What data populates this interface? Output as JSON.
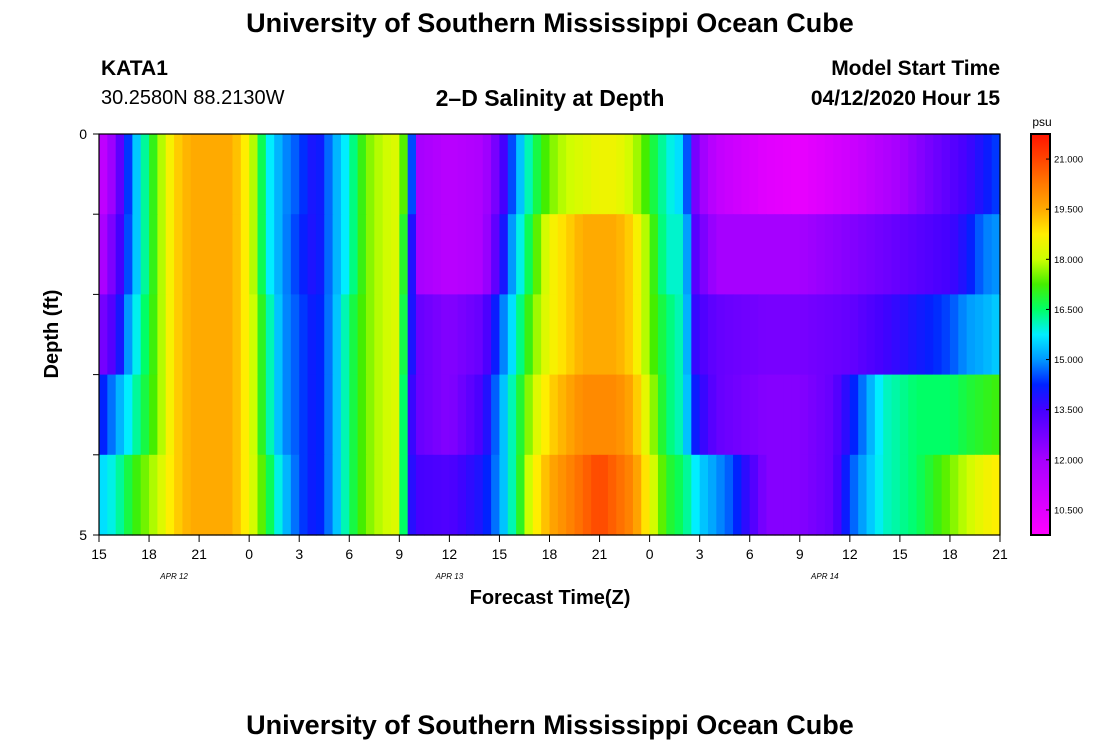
{
  "page": {
    "title_top": "University of Southern Mississippi Ocean Cube",
    "title_bottom": "University of Southern Mississippi Ocean Cube",
    "station_id": "KATA1",
    "station_coords": "30.2580N 88.2130W",
    "chart_title": "2–D Salinity at Depth",
    "model_label": "Model Start Time",
    "model_time": "04/12/2020 Hour 15"
  },
  "chart_data": {
    "type": "heatmap",
    "title": "2–D Salinity at Depth",
    "xlabel": "Forecast Time(Z)",
    "ylabel": "Depth (ft)",
    "x_start_hour": 15,
    "x_end_hour": 69,
    "x_ticks": [
      {
        "hour": 15,
        "label": "15"
      },
      {
        "hour": 18,
        "label": "18"
      },
      {
        "hour": 21,
        "label": "21"
      },
      {
        "hour": 24,
        "label": "0"
      },
      {
        "hour": 27,
        "label": "3"
      },
      {
        "hour": 30,
        "label": "6"
      },
      {
        "hour": 33,
        "label": "9"
      },
      {
        "hour": 36,
        "label": "12"
      },
      {
        "hour": 39,
        "label": "15"
      },
      {
        "hour": 42,
        "label": "18"
      },
      {
        "hour": 45,
        "label": "21"
      },
      {
        "hour": 48,
        "label": "0"
      },
      {
        "hour": 51,
        "label": "3"
      },
      {
        "hour": 54,
        "label": "6"
      },
      {
        "hour": 57,
        "label": "9"
      },
      {
        "hour": 60,
        "label": "12"
      },
      {
        "hour": 63,
        "label": "15"
      },
      {
        "hour": 66,
        "label": "18"
      },
      {
        "hour": 69,
        "label": "21"
      }
    ],
    "date_labels": [
      {
        "hour": 19.5,
        "label": "APR 12"
      },
      {
        "hour": 36.0,
        "label": "APR 13"
      },
      {
        "hour": 58.5,
        "label": "APR 14"
      }
    ],
    "y_range": [
      0,
      5
    ],
    "y_ticks": [
      0,
      1,
      2,
      3,
      4,
      5
    ],
    "y_tick_labels": [
      {
        "value": 0,
        "label": "0"
      },
      {
        "value": 5,
        "label": "5"
      }
    ],
    "depth_levels": [
      0,
      1,
      2,
      3,
      4
    ],
    "units": "psu",
    "color_min": 9.75,
    "color_max": 21.75,
    "colorbar_ticks": [
      "21.000",
      "19.500",
      "18.000",
      "16.500",
      "15.000",
      "13.500",
      "12.000",
      "10.500"
    ],
    "colorbar_values": [
      21.0,
      19.5,
      18.0,
      16.5,
      15.0,
      13.5,
      12.0,
      10.5
    ],
    "series": [
      {
        "name": "depth 0 ft",
        "keyframes": [
          [
            15,
            11.0
          ],
          [
            16,
            12.5
          ],
          [
            17,
            15.0
          ],
          [
            18.5,
            17.5
          ],
          [
            19.5,
            19.0
          ],
          [
            20.5,
            19.5
          ],
          [
            23,
            19.5
          ],
          [
            24,
            18.5
          ],
          [
            25,
            16.0
          ],
          [
            26,
            15.0
          ],
          [
            27,
            14.5
          ],
          [
            28,
            13.8
          ],
          [
            29,
            15.0
          ],
          [
            30,
            16.0
          ],
          [
            31,
            17.5
          ],
          [
            32,
            18.0
          ],
          [
            33,
            18.3
          ],
          [
            33.6,
            16.0
          ],
          [
            34,
            12.0
          ],
          [
            36,
            11.5
          ],
          [
            38,
            11.8
          ],
          [
            39,
            13.0
          ],
          [
            40,
            15.0
          ],
          [
            41,
            16.5
          ],
          [
            42,
            17.5
          ],
          [
            43,
            18.0
          ],
          [
            45,
            18.5
          ],
          [
            46,
            18.5
          ],
          [
            47,
            18.0
          ],
          [
            48,
            17.0
          ],
          [
            49,
            16.0
          ],
          [
            50,
            15.5
          ],
          [
            50.8,
            12.5
          ],
          [
            52,
            11.3
          ],
          [
            55,
            10.5
          ],
          [
            57,
            10.3
          ],
          [
            60,
            11.0
          ],
          [
            63,
            12.0
          ],
          [
            65,
            12.8
          ],
          [
            67,
            13.5
          ],
          [
            68,
            14.0
          ],
          [
            69,
            14.5
          ]
        ]
      },
      {
        "name": "depth 1 ft",
        "keyframes": [
          [
            15,
            11.5
          ],
          [
            16,
            13.0
          ],
          [
            17,
            15.0
          ],
          [
            18.5,
            17.5
          ],
          [
            19.5,
            19.0
          ],
          [
            20.5,
            19.5
          ],
          [
            23,
            19.5
          ],
          [
            24,
            18.5
          ],
          [
            25,
            16.0
          ],
          [
            26,
            15.0
          ],
          [
            27,
            14.3
          ],
          [
            28,
            13.8
          ],
          [
            29,
            15.0
          ],
          [
            30,
            16.0
          ],
          [
            31,
            17.5
          ],
          [
            32,
            18.0
          ],
          [
            33,
            18.3
          ],
          [
            33.6,
            15.0
          ],
          [
            34,
            12.0
          ],
          [
            36,
            11.5
          ],
          [
            38,
            11.8
          ],
          [
            39,
            13.5
          ],
          [
            40,
            15.5
          ],
          [
            41,
            17.0
          ],
          [
            42,
            18.5
          ],
          [
            44,
            19.5
          ],
          [
            46,
            19.5
          ],
          [
            47,
            19.0
          ],
          [
            48,
            17.5
          ],
          [
            49,
            16.0
          ],
          [
            50,
            16.0
          ],
          [
            50.8,
            13.0
          ],
          [
            52,
            12.0
          ],
          [
            55,
            12.0
          ],
          [
            57,
            12.0
          ],
          [
            60,
            12.5
          ],
          [
            63,
            13.0
          ],
          [
            66,
            13.5
          ],
          [
            67,
            14.0
          ],
          [
            68,
            14.8
          ],
          [
            69,
            15.0
          ]
        ]
      },
      {
        "name": "depth 2 ft",
        "keyframes": [
          [
            15,
            12.5
          ],
          [
            16,
            13.5
          ],
          [
            17,
            15.5
          ],
          [
            18.5,
            17.5
          ],
          [
            19.5,
            19.0
          ],
          [
            20.5,
            19.5
          ],
          [
            23,
            19.5
          ],
          [
            24,
            18.5
          ],
          [
            25,
            16.5
          ],
          [
            26,
            15.0
          ],
          [
            27,
            14.5
          ],
          [
            28,
            14.0
          ],
          [
            29,
            15.0
          ],
          [
            30,
            16.5
          ],
          [
            31,
            17.5
          ],
          [
            32,
            18.0
          ],
          [
            33,
            18.3
          ],
          [
            33.6,
            14.5
          ],
          [
            34,
            13.0
          ],
          [
            36,
            12.5
          ],
          [
            38,
            13.0
          ],
          [
            39,
            14.5
          ],
          [
            40,
            16.0
          ],
          [
            41,
            17.5
          ],
          [
            42,
            18.5
          ],
          [
            44,
            19.5
          ],
          [
            46,
            19.5
          ],
          [
            47,
            19.0
          ],
          [
            48,
            17.5
          ],
          [
            49,
            16.5
          ],
          [
            50,
            16.0
          ],
          [
            50.8,
            13.5
          ],
          [
            52,
            13.0
          ],
          [
            55,
            12.7
          ],
          [
            57,
            12.7
          ],
          [
            60,
            13.0
          ],
          [
            62,
            13.5
          ],
          [
            64,
            14.0
          ],
          [
            66,
            14.5
          ],
          [
            67,
            15.0
          ],
          [
            68,
            15.2
          ],
          [
            69,
            15.5
          ]
        ]
      },
      {
        "name": "depth 3 ft",
        "keyframes": [
          [
            15,
            14.0
          ],
          [
            16,
            15.0
          ],
          [
            17,
            16.0
          ],
          [
            18.5,
            17.5
          ],
          [
            19.5,
            19.0
          ],
          [
            20.5,
            19.5
          ],
          [
            23,
            19.5
          ],
          [
            24,
            18.5
          ],
          [
            25,
            16.5
          ],
          [
            26,
            15.0
          ],
          [
            27,
            14.5
          ],
          [
            28,
            14.0
          ],
          [
            29,
            15.0
          ],
          [
            30,
            16.5
          ],
          [
            31,
            17.5
          ],
          [
            32,
            18.0
          ],
          [
            33,
            18.3
          ],
          [
            33.6,
            14.0
          ],
          [
            34,
            13.0
          ],
          [
            36,
            12.5
          ],
          [
            38,
            13.5
          ],
          [
            39,
            15.0
          ],
          [
            40,
            16.5
          ],
          [
            41,
            18.0
          ],
          [
            42,
            19.0
          ],
          [
            44,
            20.0
          ],
          [
            46,
            20.0
          ],
          [
            47,
            19.5
          ],
          [
            48,
            18.0
          ],
          [
            49,
            16.5
          ],
          [
            50,
            16.0
          ],
          [
            50.8,
            14.0
          ],
          [
            52,
            13.0
          ],
          [
            55,
            12.5
          ],
          [
            57,
            12.5
          ],
          [
            59,
            13.0
          ],
          [
            60,
            14.0
          ],
          [
            61,
            15.0
          ],
          [
            62,
            16.0
          ],
          [
            64,
            16.5
          ],
          [
            66,
            16.5
          ],
          [
            67,
            16.8
          ],
          [
            68,
            17.0
          ],
          [
            69,
            17.2
          ]
        ]
      },
      {
        "name": "depth 4 ft",
        "keyframes": [
          [
            15,
            15.5
          ],
          [
            16,
            16.0
          ],
          [
            17,
            17.0
          ],
          [
            18.5,
            18.0
          ],
          [
            19.5,
            19.0
          ],
          [
            20.5,
            19.5
          ],
          [
            23,
            19.5
          ],
          [
            24,
            18.5
          ],
          [
            25,
            17.0
          ],
          [
            26,
            15.5
          ],
          [
            27,
            14.5
          ],
          [
            28,
            14.0
          ],
          [
            29,
            15.0
          ],
          [
            30,
            16.5
          ],
          [
            31,
            17.5
          ],
          [
            32,
            18.0
          ],
          [
            33,
            18.3
          ],
          [
            33.6,
            14.0
          ],
          [
            34,
            13.5
          ],
          [
            36,
            13.3
          ],
          [
            38,
            14.0
          ],
          [
            39,
            15.0
          ],
          [
            40,
            16.5
          ],
          [
            41,
            18.5
          ],
          [
            42,
            19.5
          ],
          [
            44,
            20.5
          ],
          [
            45,
            21.0
          ],
          [
            46,
            20.5
          ],
          [
            47,
            20.0
          ],
          [
            48,
            18.5
          ],
          [
            49,
            17.0
          ],
          [
            50,
            16.5
          ],
          [
            51,
            15.5
          ],
          [
            52,
            15.0
          ],
          [
            53,
            14.5
          ],
          [
            54,
            13.5
          ],
          [
            55,
            12.5
          ],
          [
            57,
            12.5
          ],
          [
            59,
            13.0
          ],
          [
            60,
            14.5
          ],
          [
            62,
            16.0
          ],
          [
            64,
            16.5
          ],
          [
            66,
            17.5
          ],
          [
            67,
            18.0
          ],
          [
            68,
            18.5
          ],
          [
            69,
            18.8
          ]
        ]
      }
    ]
  }
}
